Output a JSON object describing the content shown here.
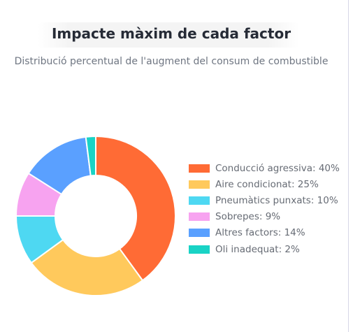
{
  "title": "Impacte màxim de cada factor",
  "subtitle": "Distribució percentual de l'augment del consum de combustible",
  "chart_data": {
    "type": "pie",
    "variant": "doughnut",
    "title": "Impacte màxim de cada factor",
    "subtitle": "Distribució percentual de l'augment del consum de combustible",
    "categories": [
      "Conducció agressiva",
      "Aire condicionat",
      "Pneumàtics punxats",
      "Sobrepes",
      "Altres factors",
      "Oli inadequat"
    ],
    "values": [
      40,
      25,
      10,
      9,
      14,
      2
    ],
    "unit": "%",
    "colors": [
      "#ff6b35",
      "#ffc95c",
      "#4ed8f2",
      "#f7a3f0",
      "#5aa0ff",
      "#19d3c5"
    ],
    "legend_labels": [
      "Conducció agressiva: 40%",
      "Aire condicionat: 25%",
      "Pneumàtics punxats: 10%",
      "Sobrepes: 9%",
      "Altres factors: 14%",
      "Oli inadequat: 2%"
    ],
    "legend_position": "right"
  }
}
